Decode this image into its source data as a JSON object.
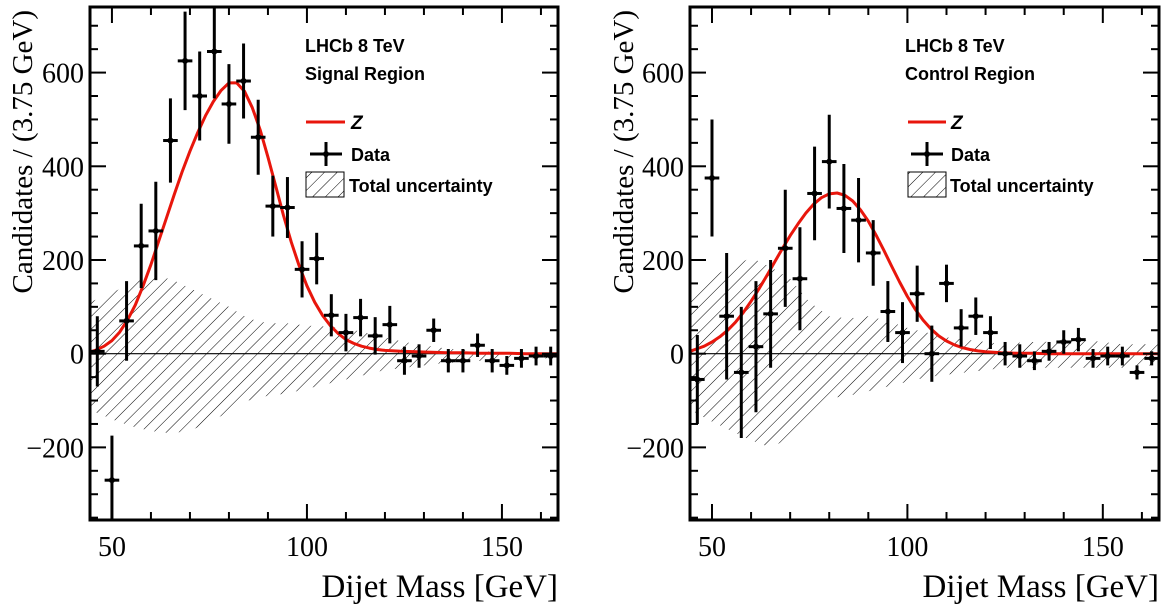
{
  "chart_data": [
    {
      "type": "scatter",
      "experiment_label": "LHCb 8 TeV",
      "region_label": "Signal Region",
      "xlabel": "Dijet Mass [GeV]",
      "ylabel": "Candidates / (3.75 GeV)",
      "xlim": [
        44.375,
        164.375
      ],
      "ylim": [
        -355,
        740
      ],
      "xticks": [
        50,
        100,
        150
      ],
      "yticks": [
        -200,
        0,
        200,
        400,
        600
      ],
      "legend": {
        "placement": "top-right",
        "entries": [
          "Z",
          "Data",
          "Total uncertainty"
        ]
      },
      "series": [
        {
          "name": "Data",
          "type": "errorbar",
          "x": [
            46.25,
            50.0,
            53.75,
            57.5,
            61.25,
            65.0,
            68.75,
            72.5,
            76.25,
            80.0,
            83.75,
            87.5,
            91.25,
            95.0,
            98.75,
            102.5,
            106.25,
            110.0,
            113.75,
            117.5,
            121.25,
            125.0,
            128.75,
            132.5,
            136.25,
            140.0,
            143.75,
            147.5,
            151.25,
            155.0,
            158.75,
            162.5
          ],
          "y": [
            5,
            -270,
            70,
            230,
            262,
            455,
            625,
            550,
            645,
            533,
            582,
            462,
            315,
            312,
            180,
            203,
            82,
            45,
            77,
            38,
            62,
            -15,
            -5,
            50,
            -15,
            -15,
            18,
            -15,
            -25,
            -10,
            -5,
            -5
          ],
          "yerr": [
            75,
            95,
            85,
            90,
            105,
            90,
            105,
            95,
            100,
            85,
            80,
            80,
            65,
            65,
            60,
            55,
            45,
            40,
            40,
            40,
            40,
            30,
            25,
            25,
            25,
            25,
            25,
            25,
            20,
            20,
            20,
            20
          ]
        },
        {
          "name": "Z",
          "type": "line",
          "color": "#e8160c",
          "x": [
            44.375,
            46,
            48,
            50,
            52,
            54,
            56,
            58,
            60,
            62,
            64,
            66,
            68,
            70,
            72,
            74,
            76,
            78,
            80,
            82,
            84,
            86,
            88,
            90,
            92,
            94,
            96,
            98,
            100,
            102,
            104,
            106,
            108,
            110,
            112,
            114,
            116,
            118,
            120,
            124,
            128,
            132,
            136,
            140,
            144,
            148,
            152,
            156,
            160,
            164.375
          ],
          "y": [
            3,
            8,
            16,
            28,
            46,
            72,
            104,
            145,
            190,
            240,
            290,
            340,
            388,
            432,
            472,
            508,
            538,
            562,
            578,
            578,
            560,
            525,
            478,
            420,
            358,
            295,
            238,
            188,
            145,
            110,
            82,
            60,
            43,
            30,
            22,
            16,
            12,
            9,
            7,
            5,
            4,
            3,
            2,
            2,
            1,
            1,
            1,
            0,
            0,
            0
          ]
        },
        {
          "name": "Total uncertainty",
          "type": "band",
          "pattern": "hatched",
          "x": [
            44.375,
            50,
            55,
            60,
            65,
            70,
            75,
            80,
            85,
            90,
            95,
            100,
            105,
            110,
            115,
            120,
            125,
            130,
            135,
            140,
            145,
            150,
            155,
            160,
            164.375
          ],
          "y_high": [
            110,
            130,
            150,
            165,
            160,
            140,
            120,
            100,
            75,
            65,
            65,
            60,
            58,
            54,
            45,
            35,
            25,
            18,
            12,
            8,
            5,
            3,
            2,
            2,
            2
          ],
          "y_low": [
            -120,
            -140,
            -155,
            -165,
            -170,
            -165,
            -145,
            -125,
            -100,
            -90,
            -85,
            -75,
            -65,
            -55,
            -45,
            -35,
            -30,
            -25,
            -20,
            -18,
            -15,
            -12,
            -10,
            -10,
            -10
          ]
        }
      ]
    },
    {
      "type": "scatter",
      "experiment_label": "LHCb 8 TeV",
      "region_label": "Control Region",
      "xlabel": "Dijet Mass [GeV]",
      "ylabel": "Candidates / (3.75 GeV)",
      "xlim": [
        44.375,
        164.375
      ],
      "ylim": [
        -355,
        740
      ],
      "xticks": [
        50,
        100,
        150
      ],
      "yticks": [
        -200,
        0,
        200,
        400,
        600
      ],
      "legend": {
        "placement": "top-right",
        "entries": [
          "Z",
          "Data",
          "Total uncertainty"
        ]
      },
      "series": [
        {
          "name": "Data",
          "type": "errorbar",
          "x": [
            46.25,
            50.0,
            53.75,
            57.5,
            61.25,
            65.0,
            68.75,
            72.5,
            76.25,
            80.0,
            83.75,
            87.5,
            91.25,
            95.0,
            98.75,
            102.5,
            106.25,
            110.0,
            113.75,
            117.5,
            121.25,
            125.0,
            128.75,
            132.5,
            136.25,
            140.0,
            143.75,
            147.5,
            151.25,
            155.0,
            158.75,
            162.5
          ],
          "y": [
            -55,
            375,
            80,
            -40,
            15,
            85,
            225,
            160,
            342,
            410,
            310,
            285,
            215,
            90,
            45,
            128,
            0,
            150,
            55,
            80,
            45,
            0,
            -5,
            -15,
            5,
            25,
            30,
            -10,
            -5,
            -5,
            -40,
            -10
          ],
          "yerr": [
            95,
            125,
            135,
            140,
            140,
            115,
            125,
            110,
            100,
            100,
            95,
            90,
            70,
            65,
            65,
            60,
            60,
            40,
            40,
            40,
            35,
            25,
            25,
            20,
            20,
            25,
            25,
            20,
            20,
            20,
            15,
            15
          ]
        },
        {
          "name": "Z",
          "type": "line",
          "color": "#e8160c",
          "x": [
            44.375,
            46,
            48,
            50,
            52,
            54,
            56,
            58,
            60,
            62,
            64,
            66,
            68,
            70,
            72,
            74,
            76,
            78,
            80,
            82,
            84,
            86,
            88,
            90,
            92,
            94,
            96,
            98,
            100,
            102,
            104,
            106,
            108,
            110,
            112,
            114,
            116,
            118,
            120,
            124,
            128,
            132,
            136,
            140,
            144,
            148,
            152,
            156,
            160,
            164.375
          ],
          "y": [
            5,
            10,
            16,
            25,
            36,
            50,
            67,
            88,
            112,
            138,
            166,
            195,
            224,
            252,
            277,
            300,
            319,
            333,
            341,
            343,
            338,
            326,
            307,
            283,
            253,
            220,
            186,
            153,
            122,
            95,
            72,
            53,
            38,
            27,
            19,
            13,
            9,
            6,
            4,
            2,
            1,
            1,
            0,
            0,
            0,
            0,
            0,
            0,
            0,
            0
          ]
        },
        {
          "name": "Total uncertainty",
          "type": "band",
          "pattern": "hatched",
          "x": [
            44.375,
            50,
            55,
            60,
            65,
            70,
            75,
            80,
            85,
            90,
            95,
            100,
            105,
            110,
            115,
            120,
            125,
            130,
            135,
            140,
            145,
            150,
            155,
            160,
            164.375
          ],
          "y_high": [
            130,
            165,
            185,
            205,
            185,
            160,
            110,
            80,
            75,
            80,
            70,
            55,
            45,
            35,
            30,
            25,
            20,
            25,
            25,
            30,
            30,
            25,
            20,
            20,
            20
          ],
          "y_low": [
            -120,
            -145,
            -165,
            -185,
            -200,
            -180,
            -130,
            -95,
            -90,
            -80,
            -70,
            -60,
            -50,
            -45,
            -40,
            -35,
            -30,
            -30,
            -30,
            -30,
            -30,
            -30,
            -30,
            -25,
            -25
          ]
        }
      ]
    }
  ]
}
